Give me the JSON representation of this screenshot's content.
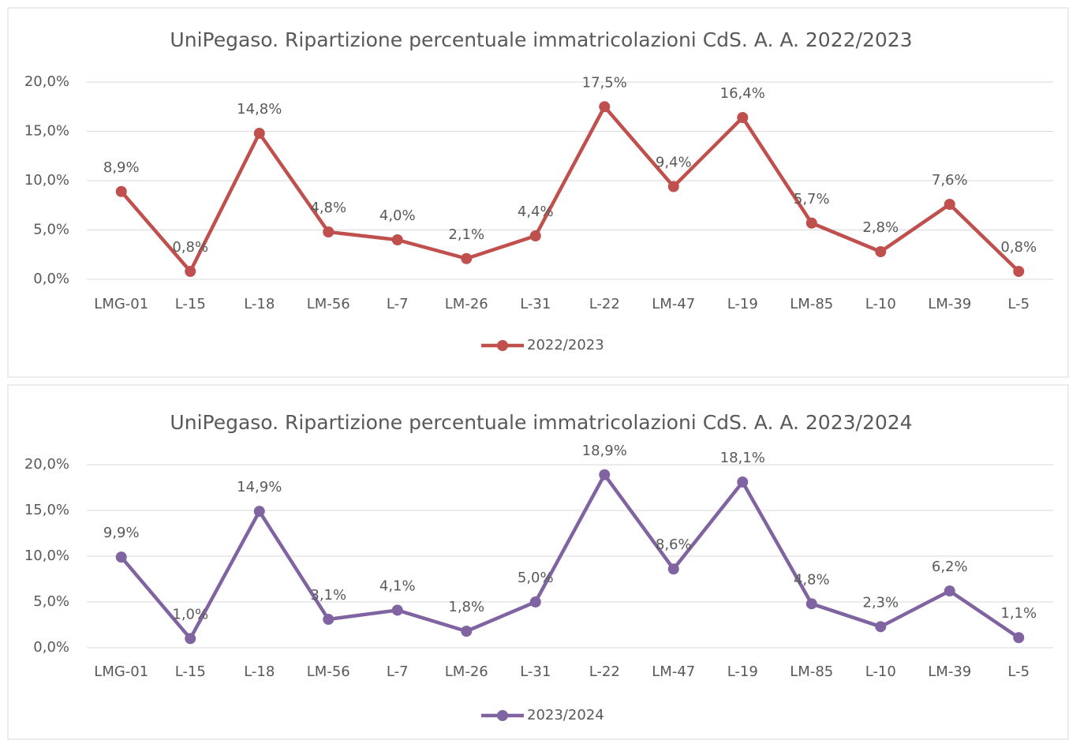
{
  "chart_data": [
    {
      "type": "line",
      "title": "UniPegaso. Ripartizione percentuale immatricolazioni CdS. A. A. 2022/2023",
      "categories": [
        "LMG-01",
        "L-15",
        "L-18",
        "LM-56",
        "L-7",
        "LM-26",
        "L-31",
        "L-22",
        "LM-47",
        "L-19",
        "LM-85",
        "L-10",
        "LM-39",
        "L-5"
      ],
      "series": [
        {
          "name": "2022/2023",
          "color": "#c0504d",
          "values": [
            8.9,
            0.8,
            14.8,
            4.8,
            4.0,
            2.1,
            4.4,
            17.5,
            9.4,
            16.4,
            5.7,
            2.8,
            7.6,
            0.8
          ],
          "value_labels": [
            "8,9%",
            "0,8%",
            "14,8%",
            "4,8%",
            "4,0%",
            "2,1%",
            "4,4%",
            "17,5%",
            "9,4%",
            "16,4%",
            "5,7%",
            "2,8%",
            "7,6%",
            "0,8%"
          ]
        }
      ],
      "ylim": [
        0,
        20
      ],
      "yticks": [
        {
          "value": 0,
          "label": "0,0%"
        },
        {
          "value": 5,
          "label": "5,0%"
        },
        {
          "value": 10,
          "label": "10,0%"
        },
        {
          "value": 15,
          "label": "15,0%"
        },
        {
          "value": 20,
          "label": "20,0%"
        }
      ],
      "grid": true,
      "legend": "bottom"
    },
    {
      "type": "line",
      "title": "UniPegaso. Ripartizione percentuale immatricolazioni CdS. A. A. 2023/2024",
      "categories": [
        "LMG-01",
        "L-15",
        "L-18",
        "LM-56",
        "L-7",
        "LM-26",
        "L-31",
        "L-22",
        "LM-47",
        "L-19",
        "LM-85",
        "L-10",
        "LM-39",
        "L-5"
      ],
      "series": [
        {
          "name": "2023/2024",
          "color": "#8064a2",
          "values": [
            9.9,
            1.0,
            14.9,
            3.1,
            4.1,
            1.8,
            5.0,
            18.9,
            8.6,
            18.1,
            4.8,
            2.3,
            6.2,
            1.1
          ],
          "value_labels": [
            "9,9%",
            "1,0%",
            "14,9%",
            "3,1%",
            "4,1%",
            "1,8%",
            "5,0%",
            "18,9%",
            "8,6%",
            "18,1%",
            "4,8%",
            "2,3%",
            "6,2%",
            "1,1%"
          ]
        }
      ],
      "ylim": [
        0,
        20
      ],
      "yticks": [
        {
          "value": 0,
          "label": "0,0%"
        },
        {
          "value": 5,
          "label": "5,0%"
        },
        {
          "value": 10,
          "label": "10,0%"
        },
        {
          "value": 15,
          "label": "15,0%"
        },
        {
          "value": 20,
          "label": "20,0%"
        }
      ],
      "grid": true,
      "legend": "bottom"
    }
  ]
}
